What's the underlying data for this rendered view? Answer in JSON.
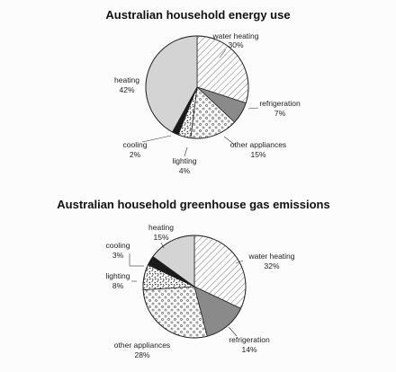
{
  "chart_data": [
    {
      "type": "pie",
      "title": "Australian household energy use",
      "categories": [
        "water heating",
        "refrigeration",
        "other appliances",
        "lighting",
        "cooling",
        "heating"
      ],
      "values": [
        30,
        7,
        15,
        4,
        2,
        42
      ],
      "value_labels": [
        "30%",
        "7%",
        "15%",
        "4%",
        "2%",
        "42%"
      ],
      "start_angle_deg": 0,
      "direction": "clockwise",
      "fills": [
        "diagonal-hatch",
        "#8a8a8a",
        "dots",
        "squiggle",
        "#1a1a1a",
        "#d4d4d4"
      ]
    },
    {
      "type": "pie",
      "title": "Australian household greenhouse gas emissions",
      "categories": [
        "water heating",
        "refrigeration",
        "other appliances",
        "lighting",
        "cooling",
        "heating"
      ],
      "values": [
        32,
        14,
        28,
        8,
        3,
        15
      ],
      "value_labels": [
        "32%",
        "14%",
        "28%",
        "8%",
        "3%",
        "15%"
      ],
      "start_angle_deg": 0,
      "direction": "clockwise",
      "fills": [
        "diagonal-hatch",
        "#8a8a8a",
        "dots",
        "squiggle",
        "#1a1a1a",
        "#d4d4d4"
      ]
    }
  ]
}
